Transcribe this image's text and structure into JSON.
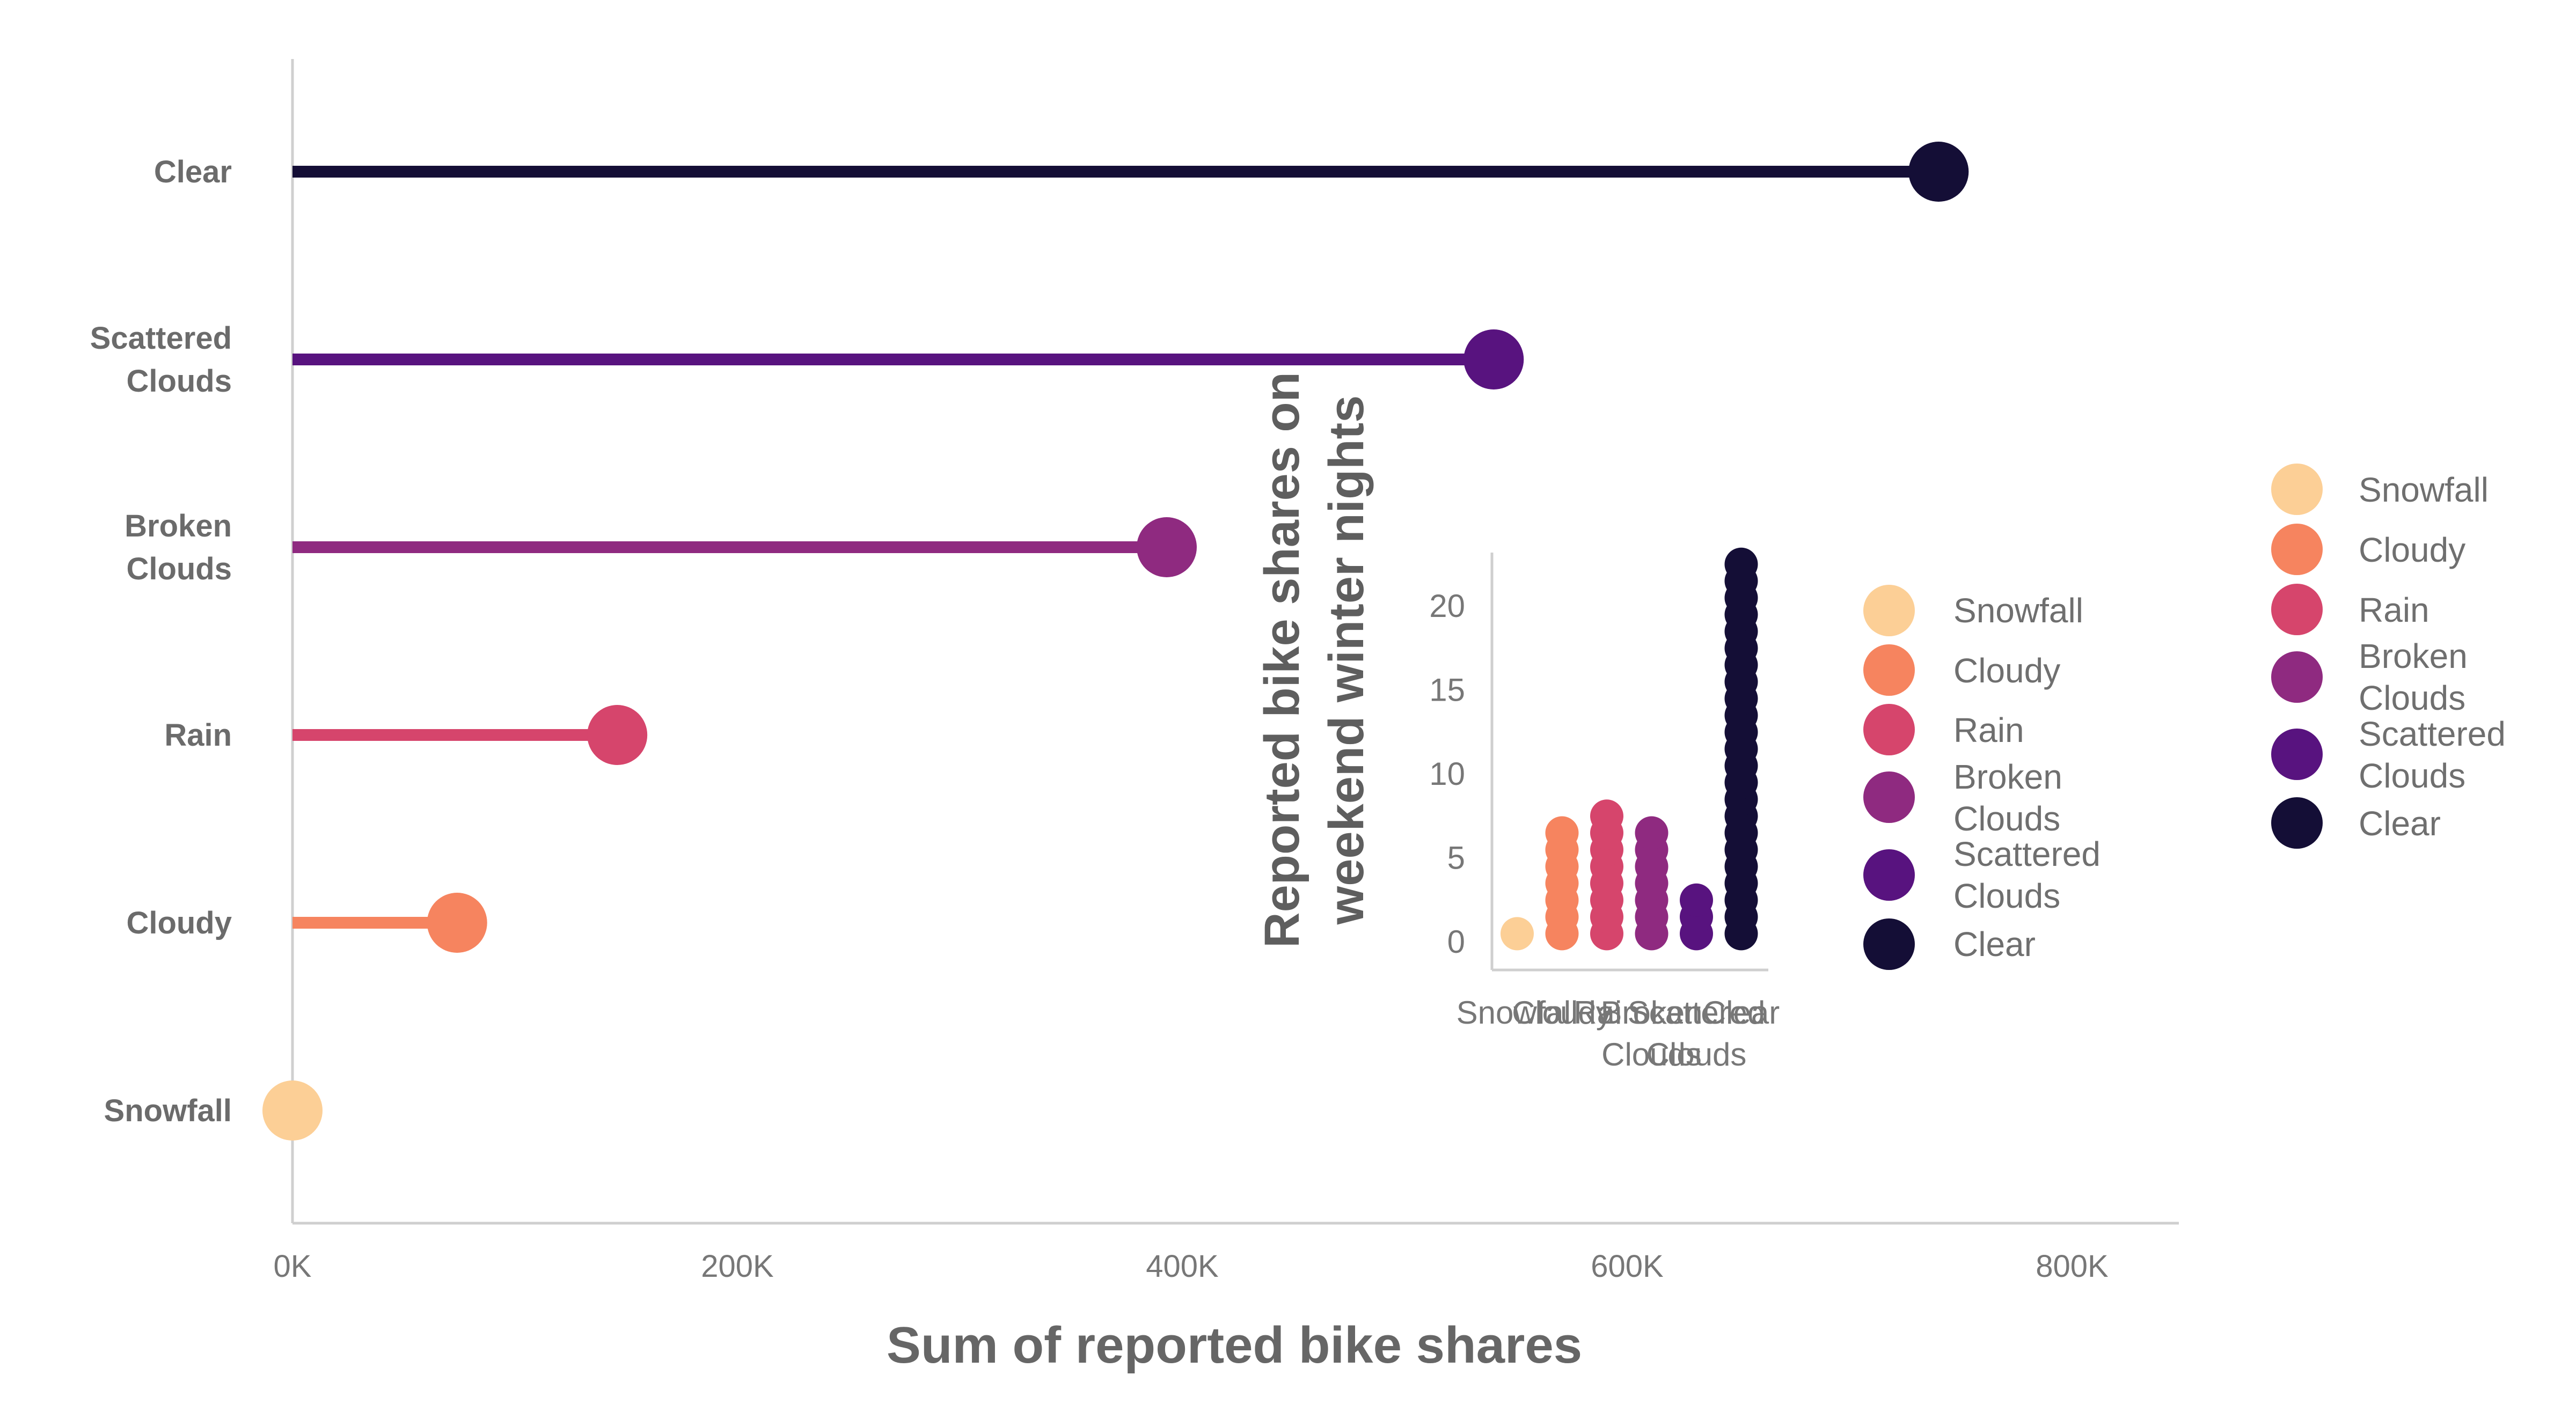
{
  "colors": {
    "Snowfall": "#fccf96",
    "Cloudy": "#f6845f",
    "Rain": "#d6456c",
    "Broken Clouds": "#8f2a80",
    "Scattered Clouds": "#58137f",
    "Clear": "#140e36",
    "axis": "#cfcfcf"
  },
  "chart_data": [
    {
      "type": "lollipop",
      "orientation": "horizontal",
      "categories": [
        "Clear",
        "Scattered Clouds",
        "Broken Clouds",
        "Rain",
        "Cloudy",
        "Snowfall"
      ],
      "category_lines": [
        [
          "Clear"
        ],
        [
          "Scattered",
          "Clouds"
        ],
        [
          "Broken",
          "Clouds"
        ],
        [
          "Rain"
        ],
        [
          "Cloudy"
        ],
        [
          "Snowfall"
        ]
      ],
      "values": [
        740000,
        540000,
        393000,
        146000,
        74000,
        0
      ],
      "xlabel": "Sum of reported bike shares",
      "ylabel": "",
      "xlim": [
        0,
        850000
      ],
      "xticks": [
        0,
        200000,
        400000,
        600000,
        800000
      ],
      "xtick_labels": [
        "0K",
        "200K",
        "400K",
        "600K",
        "800K"
      ],
      "legend": {
        "placement": "right",
        "entries": [
          "Snowfall",
          "Cloudy",
          "Rain",
          "Broken Clouds",
          "Scattered Clouds",
          "Clear"
        ],
        "entry_lines": [
          [
            "Snowfall"
          ],
          [
            "Cloudy"
          ],
          [
            "Rain"
          ],
          [
            "Broken",
            "Clouds"
          ],
          [
            "Scattered",
            "Clouds"
          ],
          [
            "Clear"
          ]
        ]
      }
    },
    {
      "type": "dot-strip",
      "categories": [
        "Snowfall",
        "Cloudy",
        "Rain",
        "Broken Clouds",
        "Scattered Clouds",
        "Clear"
      ],
      "values": [
        1,
        7,
        8,
        7,
        3,
        23
      ],
      "ylabel_lines": [
        "Reported bike shares on",
        "weekend winter nights"
      ],
      "xlabel": "",
      "ylim": [
        0,
        24
      ],
      "yticks": [
        0,
        5,
        10,
        15,
        20
      ],
      "xtick_lines": [
        [
          "Snowfall"
        ],
        [
          "Cloudy"
        ],
        [
          "Rain"
        ],
        [
          "Broken",
          "Clouds"
        ],
        [
          "Scattered",
          "Clouds"
        ],
        [
          "Clear"
        ]
      ],
      "legend": {
        "placement": "right",
        "entries": [
          "Snowfall",
          "Cloudy",
          "Rain",
          "Broken Clouds",
          "Scattered Clouds",
          "Clear"
        ],
        "entry_lines": [
          [
            "Snowfall"
          ],
          [
            "Cloudy"
          ],
          [
            "Rain"
          ],
          [
            "Broken",
            "Clouds"
          ],
          [
            "Scattered",
            "Clouds"
          ],
          [
            "Clear"
          ]
        ]
      }
    }
  ]
}
